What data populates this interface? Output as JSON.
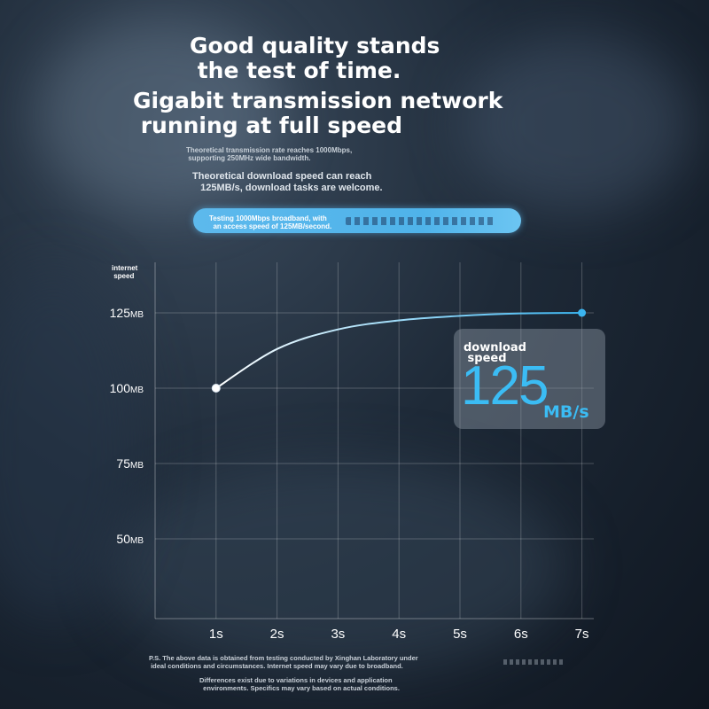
{
  "headline": {
    "line1": "Good quality stands\n the test of time.",
    "line2": "Gigabit transmission network\n running at full speed"
  },
  "subtitles": {
    "small": "Theoretical transmission rate reaches 1000Mbps,\n supporting 250MHz wide bandwidth.",
    "medium": "Theoretical download speed can reach\n   125MB/s, download tasks are welcome."
  },
  "banner": {
    "text": "Testing 1000Mbps broadband, with\n  an access speed of 125MB/second.",
    "color": "#4fb3ea"
  },
  "chart_data": {
    "type": "line",
    "ylabel": "internet\n speed",
    "x_ticks": [
      "1s",
      "2s",
      "3s",
      "4s",
      "5s",
      "6s",
      "7s"
    ],
    "y_ticks": [
      {
        "value": 125,
        "num": "125",
        "unit": "MB"
      },
      {
        "value": 100,
        "num": "100",
        "unit": "MB"
      },
      {
        "value": 75,
        "num": "75",
        "unit": "MB"
      },
      {
        "value": 50,
        "num": "50",
        "unit": "MB"
      }
    ],
    "series": [
      {
        "x": [
          1,
          2,
          3,
          4,
          5,
          6,
          7
        ],
        "y": [
          100,
          113,
          119.5,
          122.5,
          124,
          124.8,
          125
        ],
        "color_start": "#ffffff",
        "color_end": "#3bb5f0"
      }
    ],
    "xlim": [
      0,
      7.2
    ],
    "ylim": [
      25,
      141
    ],
    "grid": true
  },
  "speed_card": {
    "label": "download\n speed",
    "value": "125",
    "unit": "MB/s",
    "accent": "#3bbcf4"
  },
  "footnotes": {
    "note1": "P.S. The above data is obtained from testing conducted by Xinghan Laboratory under\n ideal conditions and circumstances. Internet speed may vary due to broadband.",
    "note2": "Differences exist due to variations in devices and application\n  environments. Specifics may vary based on actual conditions."
  }
}
